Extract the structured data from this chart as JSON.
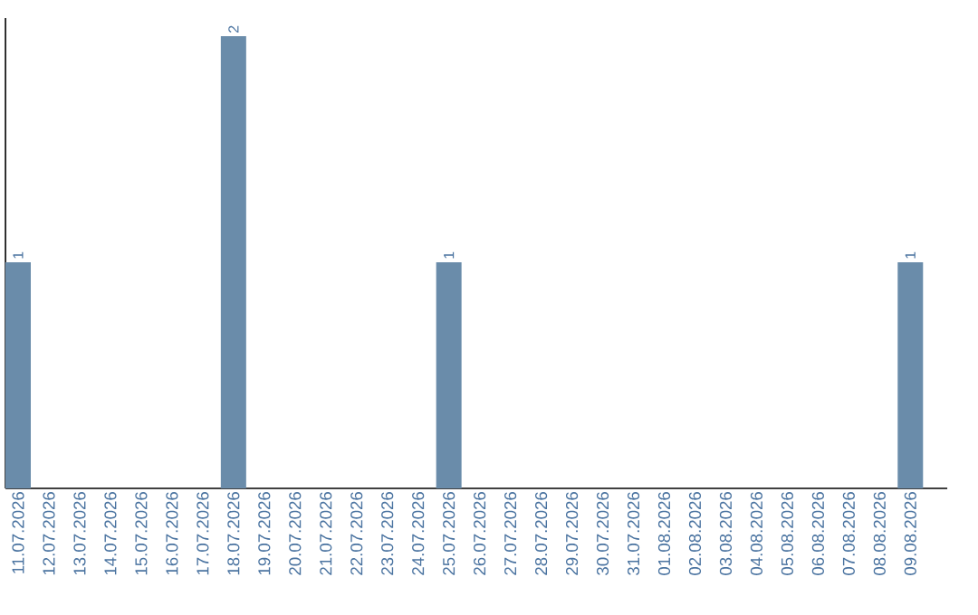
{
  "chart_data": {
    "type": "bar",
    "categories": [
      "11.07.2026",
      "12.07.2026",
      "13.07.2026",
      "14.07.2026",
      "15.07.2026",
      "16.07.2026",
      "17.07.2026",
      "18.07.2026",
      "19.07.2026",
      "20.07.2026",
      "21.07.2026",
      "22.07.2026",
      "23.07.2026",
      "24.07.2026",
      "25.07.2026",
      "26.07.2026",
      "27.07.2026",
      "28.07.2026",
      "29.07.2026",
      "30.07.2026",
      "31.07.2026",
      "01.08.2026",
      "02.08.2026",
      "03.08.2026",
      "04.08.2026",
      "05.08.2026",
      "06.08.2026",
      "07.08.2026",
      "08.08.2026",
      "09.08.2026"
    ],
    "values": [
      1,
      0,
      0,
      0,
      0,
      0,
      0,
      2,
      0,
      0,
      0,
      0,
      0,
      0,
      1,
      0,
      0,
      0,
      0,
      0,
      0,
      0,
      0,
      0,
      0,
      0,
      0,
      0,
      0,
      1
    ],
    "value_labels": [
      "1",
      null,
      null,
      null,
      null,
      null,
      null,
      "2",
      null,
      null,
      null,
      null,
      null,
      null,
      "1",
      null,
      null,
      null,
      null,
      null,
      null,
      null,
      null,
      null,
      null,
      null,
      null,
      null,
      null,
      "1"
    ],
    "color": "#6a8caa",
    "tick_labels": "x"
  }
}
